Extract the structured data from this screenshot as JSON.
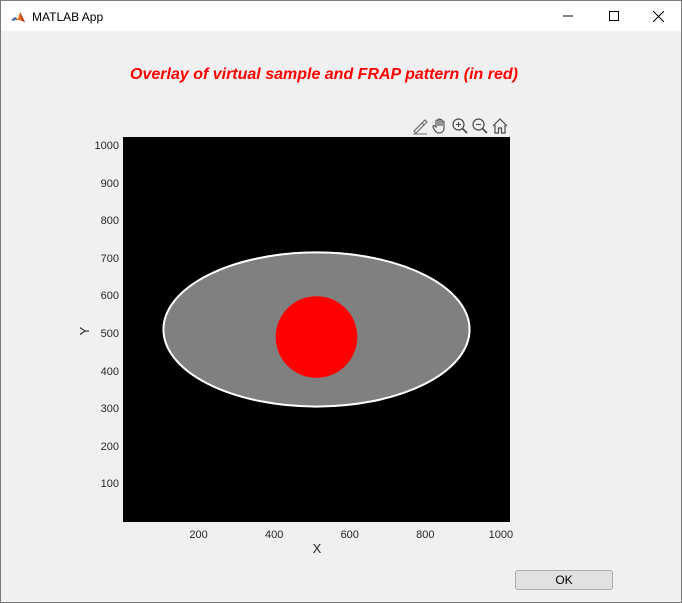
{
  "window": {
    "title": "MATLAB App"
  },
  "titlebar_buttons": [
    "minimize",
    "maximize",
    "close"
  ],
  "toolbar": {
    "tools": [
      "brush-icon",
      "pan-hand-icon",
      "zoom-in-icon",
      "zoom-out-icon",
      "home-icon"
    ]
  },
  "chart_data": {
    "type": "heatmap",
    "title": "Overlay of virtual sample and FRAP pattern (in red)",
    "xlabel": "X",
    "ylabel": "Y",
    "xlim": [
      0,
      1024
    ],
    "ylim": [
      0,
      1024
    ],
    "xticks": [
      200,
      400,
      600,
      800,
      1000
    ],
    "yticks": [
      100,
      200,
      300,
      400,
      500,
      600,
      700,
      800,
      900,
      1000
    ],
    "background_color": "#000000",
    "shapes": [
      {
        "name": "virtual sample",
        "kind": "ellipse",
        "center": [
          512,
          512
        ],
        "radii": [
          405,
          205
        ],
        "fill": "#808080",
        "edge": "#ffffff"
      },
      {
        "name": "FRAP pattern",
        "kind": "circle",
        "center": [
          512,
          492
        ],
        "radius": 108,
        "fill": "#ff0000"
      }
    ]
  },
  "footer": {
    "ok_label": "OK"
  },
  "colors": {
    "title": "#ff0000",
    "axes_text": "#262626",
    "window_bg": "#f0f0f0"
  }
}
